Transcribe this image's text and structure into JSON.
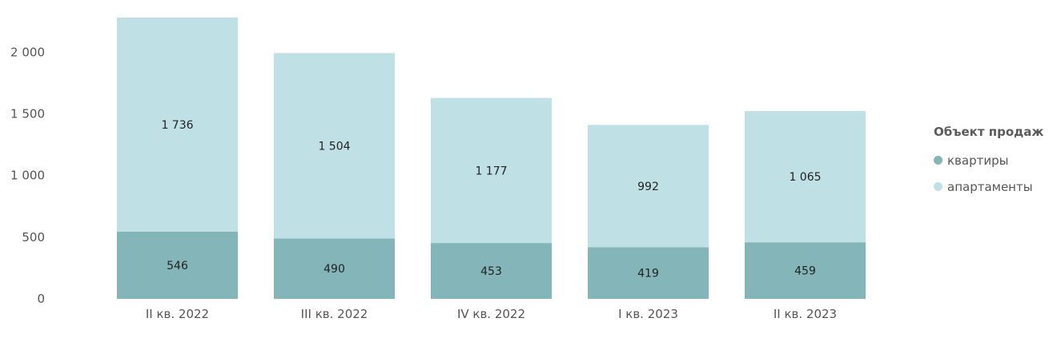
{
  "chart_data": {
    "type": "bar",
    "stacked": true,
    "categories": [
      "II кв. 2022",
      "III кв. 2022",
      "IV кв. 2022",
      "I кв. 2023",
      "II кв. 2023"
    ],
    "series": [
      {
        "name": "квартиры",
        "values": [
          546,
          490,
          453,
          419,
          459
        ],
        "labels": [
          "546",
          "490",
          "453",
          "419",
          "459"
        ],
        "color": "#84b5b8"
      },
      {
        "name": "апартаменты",
        "values": [
          1736,
          1504,
          1177,
          992,
          1065
        ],
        "labels": [
          "1 736",
          "1 504",
          "1 177",
          "992",
          "1 065"
        ],
        "color": "#bfe0e5"
      }
    ],
    "ylim": [
      0,
      2300
    ],
    "yticks": [
      0,
      500,
      1000,
      1500,
      2000
    ],
    "ytick_labels": [
      "0",
      "500",
      "1 000",
      "1 500",
      "2 000"
    ],
    "grid": false,
    "legend": {
      "title": "Объект продаж",
      "position": "right"
    }
  }
}
